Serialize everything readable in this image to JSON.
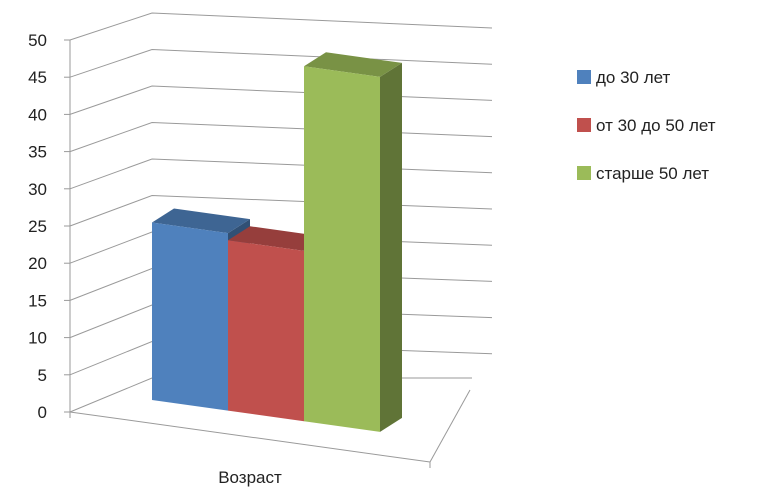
{
  "chart_data": {
    "type": "bar",
    "categories": [
      "Возраст"
    ],
    "series": [
      {
        "name": "до 30 лет",
        "values": [
          25
        ],
        "color": "#4f81bd"
      },
      {
        "name": "от 30 до 50 лет",
        "values": [
          24
        ],
        "color": "#c0504d"
      },
      {
        "name": "старше 50 лет",
        "values": [
          50
        ],
        "color": "#9bbb59"
      }
    ],
    "title": "",
    "xlabel": "",
    "ylabel": "",
    "ylim": [
      0,
      50
    ],
    "yticks": [
      0,
      5,
      10,
      15,
      20,
      25,
      30,
      35,
      40,
      45,
      50
    ],
    "grid": true,
    "legend_position": "right",
    "three_d": true
  }
}
